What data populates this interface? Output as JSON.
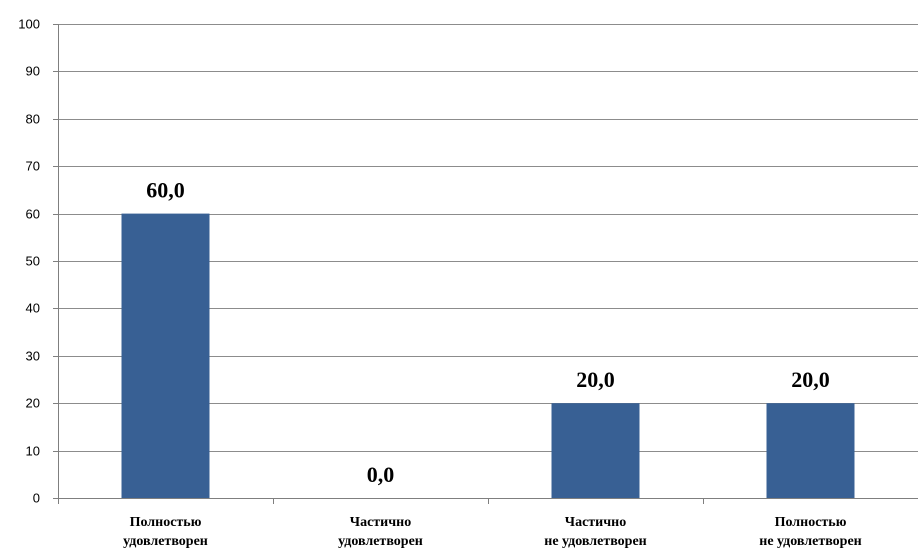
{
  "chart_data": {
    "type": "bar",
    "categories": [
      [
        "Полностью",
        "удовлетворен"
      ],
      [
        "Частично",
        "удовлетворен"
      ],
      [
        "Частично",
        "не удовлетворен"
      ],
      [
        "Полностью",
        "не удовлетворен"
      ]
    ],
    "values": [
      60,
      0,
      20,
      20
    ],
    "value_labels": [
      "60,0",
      "0,0",
      "20,0",
      "20,0"
    ],
    "yticks": [
      0,
      10,
      20,
      30,
      40,
      50,
      60,
      70,
      80,
      90,
      100
    ],
    "ylim": [
      0,
      100
    ],
    "grid": true,
    "legend": "none",
    "title": "",
    "xlabel": "",
    "ylabel": "",
    "bar_color": "#386094",
    "grid_color": "#8c8c8c",
    "axis_color": "#7f7f7f"
  }
}
